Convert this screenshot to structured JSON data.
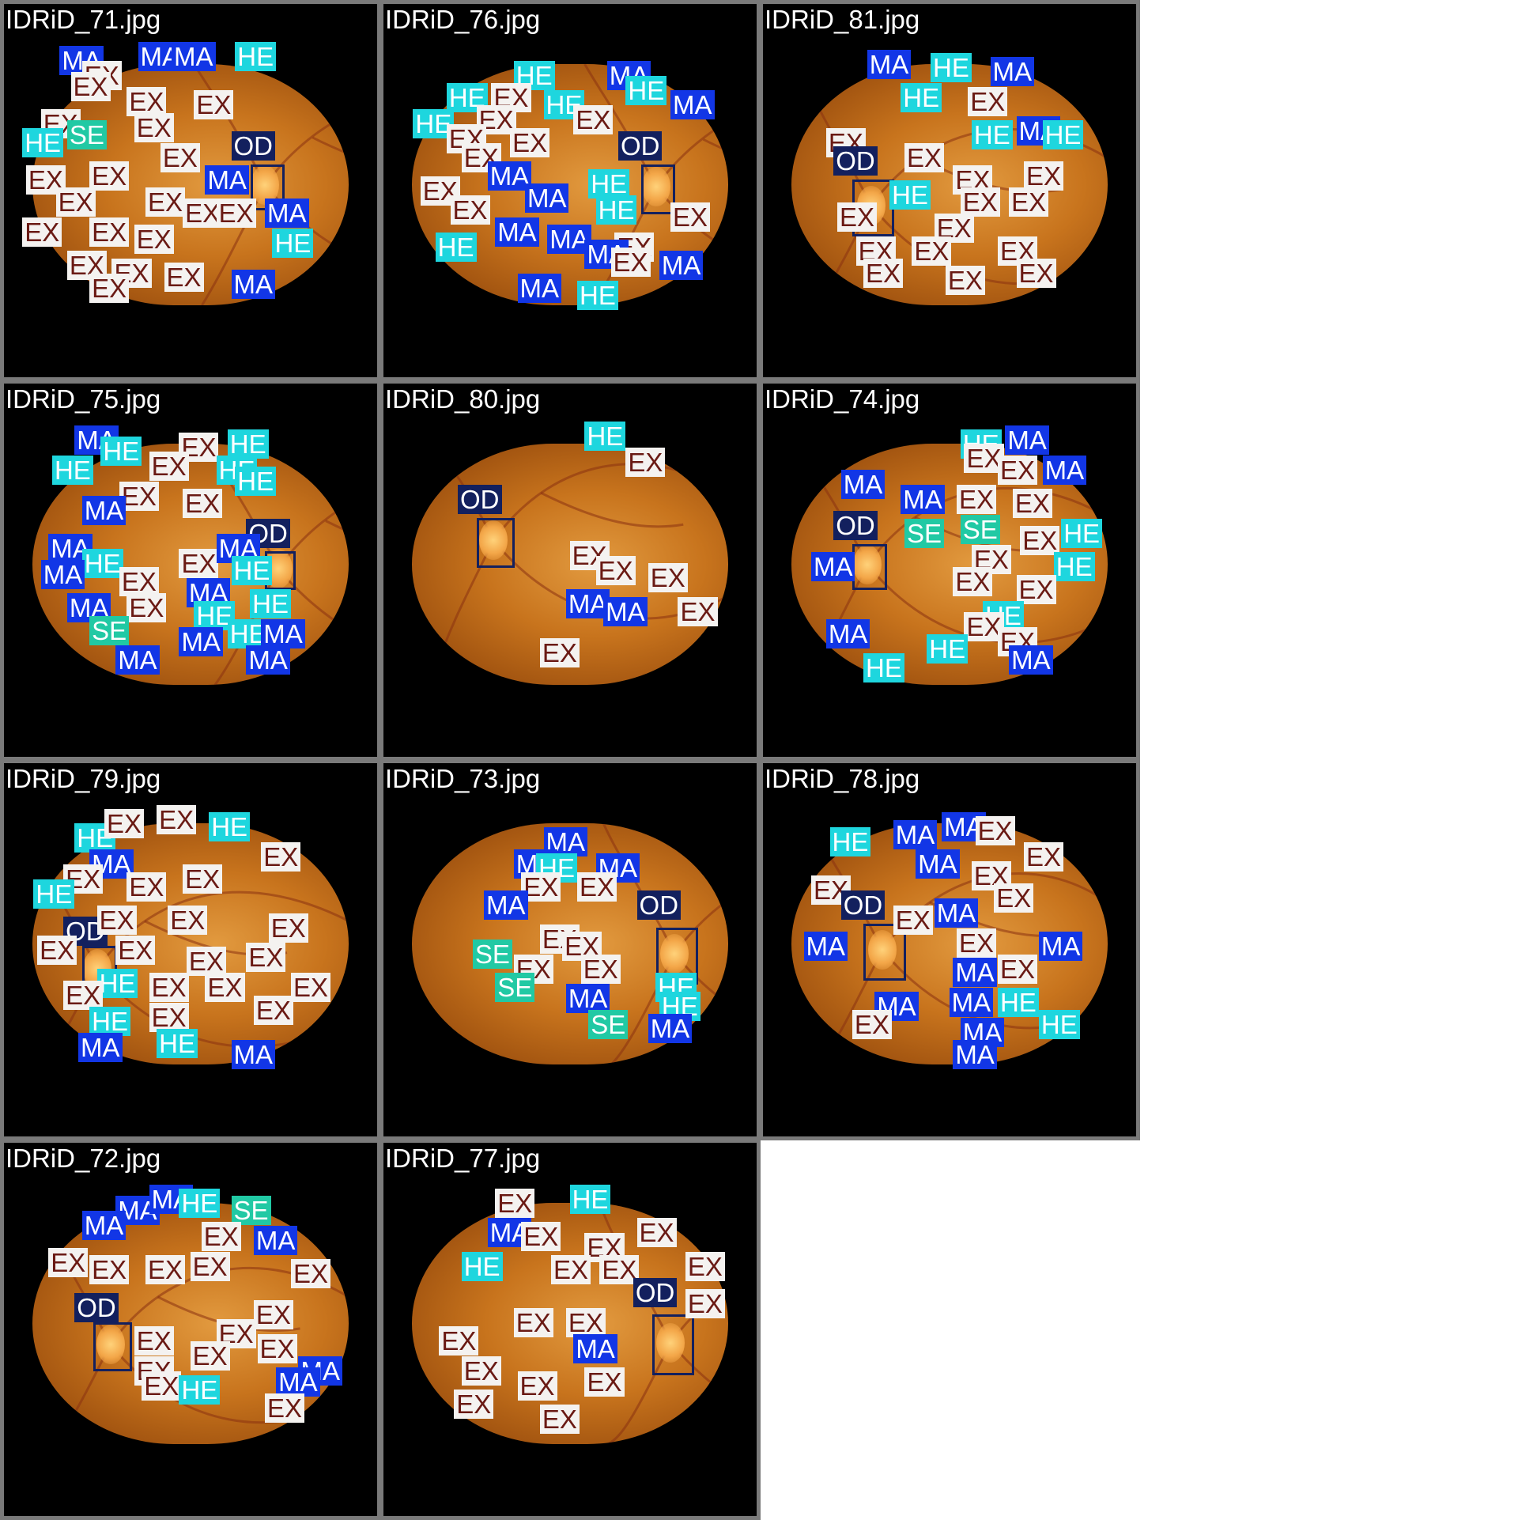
{
  "tiles": [
    {
      "name": "IDRiD_71.jpg",
      "labels": [
        [
          "MA",
          0.2,
          0.15
        ],
        [
          "MA",
          0.41,
          0.14
        ],
        [
          "MA",
          0.5,
          0.14
        ],
        [
          "HE",
          0.67,
          0.14
        ],
        [
          "EX",
          0.26,
          0.19
        ],
        [
          "EX",
          0.23,
          0.22
        ],
        [
          "EX",
          0.38,
          0.26
        ],
        [
          "EX",
          0.56,
          0.27
        ],
        [
          "EX",
          0.15,
          0.32
        ],
        [
          "SE",
          0.22,
          0.35
        ],
        [
          "HE",
          0.1,
          0.37
        ],
        [
          "OD",
          0.66,
          0.38
        ],
        [
          "EX",
          0.4,
          0.33
        ],
        [
          "EX",
          0.47,
          0.41
        ],
        [
          "EX",
          0.11,
          0.47
        ],
        [
          "EX",
          0.28,
          0.46
        ],
        [
          "MA",
          0.59,
          0.47
        ],
        [
          "EX",
          0.19,
          0.53
        ],
        [
          "EX",
          0.43,
          0.53
        ],
        [
          "EX",
          0.53,
          0.56
        ],
        [
          "EX",
          0.62,
          0.56
        ],
        [
          "MA",
          0.75,
          0.56
        ],
        [
          "EX",
          0.1,
          0.61
        ],
        [
          "EX",
          0.28,
          0.61
        ],
        [
          "EX",
          0.4,
          0.63
        ],
        [
          "HE",
          0.77,
          0.64
        ],
        [
          "EX",
          0.22,
          0.7
        ],
        [
          "EX",
          0.34,
          0.72
        ],
        [
          "EX",
          0.48,
          0.73
        ],
        [
          "EX",
          0.28,
          0.76
        ],
        [
          "MA",
          0.66,
          0.75
        ]
      ],
      "od": [
        0.66,
        0.43,
        0.08,
        0.11
      ]
    },
    {
      "name": "IDRiD_75.jpg",
      "labels": [
        [
          "MA",
          0.24,
          0.15
        ],
        [
          "HE",
          0.31,
          0.18
        ],
        [
          "EX",
          0.52,
          0.17
        ],
        [
          "HE",
          0.65,
          0.16
        ],
        [
          "HE",
          0.18,
          0.23
        ],
        [
          "EX",
          0.44,
          0.22
        ],
        [
          "HE",
          0.62,
          0.23
        ],
        [
          "EX",
          0.36,
          0.3
        ],
        [
          "EX",
          0.53,
          0.32
        ],
        [
          "HE",
          0.67,
          0.26
        ],
        [
          "MA",
          0.26,
          0.34
        ],
        [
          "OD",
          0.7,
          0.4
        ],
        [
          "MA",
          0.17,
          0.44
        ],
        [
          "HE",
          0.26,
          0.48
        ],
        [
          "EX",
          0.52,
          0.48
        ],
        [
          "MA",
          0.62,
          0.44
        ],
        [
          "HE",
          0.66,
          0.5
        ],
        [
          "MA",
          0.15,
          0.51
        ],
        [
          "EX",
          0.36,
          0.53
        ],
        [
          "MA",
          0.54,
          0.56
        ],
        [
          "HE",
          0.71,
          0.59
        ],
        [
          "MA",
          0.22,
          0.6
        ],
        [
          "EX",
          0.38,
          0.6
        ],
        [
          "HE",
          0.56,
          0.62
        ],
        [
          "SE",
          0.28,
          0.66
        ],
        [
          "MA",
          0.52,
          0.69
        ],
        [
          "HE",
          0.65,
          0.67
        ],
        [
          "MA",
          0.74,
          0.67
        ],
        [
          "MA",
          0.35,
          0.74
        ],
        [
          "MA",
          0.7,
          0.74
        ]
      ],
      "od": [
        0.7,
        0.45,
        0.07,
        0.09
      ]
    },
    {
      "name": "IDRiD_79.jpg",
      "labels": [
        [
          "HE",
          0.24,
          0.2
        ],
        [
          "EX",
          0.32,
          0.16
        ],
        [
          "EX",
          0.46,
          0.15
        ],
        [
          "HE",
          0.6,
          0.17
        ],
        [
          "MA",
          0.28,
          0.27
        ],
        [
          "EX",
          0.74,
          0.25
        ],
        [
          "EX",
          0.21,
          0.31
        ],
        [
          "EX",
          0.38,
          0.33
        ],
        [
          "EX",
          0.53,
          0.31
        ],
        [
          "HE",
          0.13,
          0.35
        ],
        [
          "OD",
          0.21,
          0.45
        ],
        [
          "EX",
          0.3,
          0.42
        ],
        [
          "EX",
          0.49,
          0.42
        ],
        [
          "EX",
          0.76,
          0.44
        ],
        [
          "EX",
          0.14,
          0.5
        ],
        [
          "EX",
          0.35,
          0.5
        ],
        [
          "EX",
          0.54,
          0.53
        ],
        [
          "EX",
          0.7,
          0.52
        ],
        [
          "HE",
          0.3,
          0.59
        ],
        [
          "EX",
          0.44,
          0.6
        ],
        [
          "EX",
          0.59,
          0.6
        ],
        [
          "EX",
          0.82,
          0.6
        ],
        [
          "EX",
          0.21,
          0.62
        ],
        [
          "EX",
          0.44,
          0.68
        ],
        [
          "EX",
          0.72,
          0.66
        ],
        [
          "HE",
          0.28,
          0.69
        ],
        [
          "MA",
          0.25,
          0.76
        ],
        [
          "HE",
          0.46,
          0.75
        ],
        [
          "MA",
          0.66,
          0.78
        ]
      ],
      "od": [
        0.21,
        0.49,
        0.08,
        0.12
      ]
    },
    {
      "name": "IDRiD_72.jpg",
      "labels": [
        [
          "MA",
          0.35,
          0.18
        ],
        [
          "MA",
          0.44,
          0.15
        ],
        [
          "HE",
          0.52,
          0.16
        ],
        [
          "SE",
          0.66,
          0.18
        ],
        [
          "MA",
          0.26,
          0.22
        ],
        [
          "EX",
          0.58,
          0.25
        ],
        [
          "MA",
          0.72,
          0.26
        ],
        [
          "EX",
          0.17,
          0.32
        ],
        [
          "EX",
          0.28,
          0.34
        ],
        [
          "EX",
          0.43,
          0.34
        ],
        [
          "EX",
          0.55,
          0.33
        ],
        [
          "EX",
          0.82,
          0.35
        ],
        [
          "OD",
          0.24,
          0.44
        ],
        [
          "EX",
          0.4,
          0.53
        ],
        [
          "EX",
          0.62,
          0.51
        ],
        [
          "EX",
          0.72,
          0.46
        ],
        [
          "EX",
          0.55,
          0.57
        ],
        [
          "EX",
          0.73,
          0.55
        ],
        [
          "MA",
          0.84,
          0.61
        ],
        [
          "EX",
          0.4,
          0.61
        ],
        [
          "MA",
          0.78,
          0.64
        ],
        [
          "EX",
          0.42,
          0.65
        ],
        [
          "HE",
          0.52,
          0.66
        ],
        [
          "EX",
          0.75,
          0.71
        ]
      ],
      "od": [
        0.24,
        0.48,
        0.09,
        0.12
      ]
    },
    {
      "name": "IDRiD_76.jpg",
      "labels": [
        [
          "HE",
          0.4,
          0.19
        ],
        [
          "MA",
          0.65,
          0.19
        ],
        [
          "HE",
          0.22,
          0.25
        ],
        [
          "EX",
          0.34,
          0.25
        ],
        [
          "HE",
          0.48,
          0.27
        ],
        [
          "HE",
          0.7,
          0.23
        ],
        [
          "MA",
          0.82,
          0.27
        ],
        [
          "EX",
          0.3,
          0.31
        ],
        [
          "EX",
          0.56,
          0.31
        ],
        [
          "HE",
          0.13,
          0.32
        ],
        [
          "EX",
          0.22,
          0.36
        ],
        [
          "EX",
          0.39,
          0.37
        ],
        [
          "OD",
          0.68,
          0.38
        ],
        [
          "EX",
          0.26,
          0.41
        ],
        [
          "MA",
          0.33,
          0.46
        ],
        [
          "EX",
          0.15,
          0.5
        ],
        [
          "HE",
          0.6,
          0.48
        ],
        [
          "MA",
          0.43,
          0.52
        ],
        [
          "EX",
          0.23,
          0.55
        ],
        [
          "HE",
          0.62,
          0.55
        ],
        [
          "EX",
          0.82,
          0.57
        ],
        [
          "MA",
          0.35,
          0.61
        ],
        [
          "MA",
          0.49,
          0.63
        ],
        [
          "HE",
          0.19,
          0.65
        ],
        [
          "EX",
          0.67,
          0.65
        ],
        [
          "MA",
          0.59,
          0.67
        ],
        [
          "EX",
          0.66,
          0.69
        ],
        [
          "MA",
          0.79,
          0.7
        ],
        [
          "MA",
          0.41,
          0.76
        ],
        [
          "HE",
          0.57,
          0.78
        ]
      ],
      "od": [
        0.69,
        0.43,
        0.08,
        0.12
      ]
    },
    {
      "name": "IDRiD_80.jpg",
      "labels": [
        [
          "HE",
          0.59,
          0.14
        ],
        [
          "EX",
          0.7,
          0.21
        ],
        [
          "OD",
          0.25,
          0.31
        ],
        [
          "EX",
          0.55,
          0.46
        ],
        [
          "EX",
          0.62,
          0.5
        ],
        [
          "EX",
          0.76,
          0.52
        ],
        [
          "MA",
          0.54,
          0.59
        ],
        [
          "MA",
          0.64,
          0.61
        ],
        [
          "EX",
          0.84,
          0.61
        ],
        [
          "EX",
          0.47,
          0.72
        ]
      ],
      "od": [
        0.25,
        0.36,
        0.09,
        0.12
      ]
    },
    {
      "name": "IDRiD_73.jpg",
      "labels": [
        [
          "MA",
          0.48,
          0.21
        ],
        [
          "MA",
          0.4,
          0.27
        ],
        [
          "HE",
          0.46,
          0.28
        ],
        [
          "MA",
          0.62,
          0.28
        ],
        [
          "EX",
          0.42,
          0.33
        ],
        [
          "EX",
          0.57,
          0.33
        ],
        [
          "OD",
          0.73,
          0.38
        ],
        [
          "MA",
          0.32,
          0.38
        ],
        [
          "EX",
          0.47,
          0.47
        ],
        [
          "EX",
          0.53,
          0.49
        ],
        [
          "SE",
          0.29,
          0.51
        ],
        [
          "EX",
          0.4,
          0.55
        ],
        [
          "EX",
          0.58,
          0.55
        ],
        [
          "SE",
          0.35,
          0.6
        ],
        [
          "HE",
          0.78,
          0.6
        ],
        [
          "MA",
          0.54,
          0.63
        ],
        [
          "HE",
          0.79,
          0.65
        ],
        [
          "SE",
          0.6,
          0.7
        ],
        [
          "MA",
          0.76,
          0.71
        ]
      ],
      "od": [
        0.73,
        0.44,
        0.1,
        0.14
      ]
    },
    {
      "name": "IDRiD_77.jpg",
      "labels": [
        [
          "EX",
          0.35,
          0.16
        ],
        [
          "HE",
          0.55,
          0.15
        ],
        [
          "MA",
          0.33,
          0.24
        ],
        [
          "EX",
          0.42,
          0.25
        ],
        [
          "EX",
          0.59,
          0.28
        ],
        [
          "EX",
          0.73,
          0.24
        ],
        [
          "HE",
          0.26,
          0.33
        ],
        [
          "EX",
          0.5,
          0.34
        ],
        [
          "EX",
          0.63,
          0.34
        ],
        [
          "EX",
          0.86,
          0.33
        ],
        [
          "OD",
          0.72,
          0.4
        ],
        [
          "EX",
          0.86,
          0.43
        ],
        [
          "EX",
          0.4,
          0.48
        ],
        [
          "EX",
          0.54,
          0.48
        ],
        [
          "EX",
          0.2,
          0.53
        ],
        [
          "MA",
          0.56,
          0.55
        ],
        [
          "EX",
          0.26,
          0.61
        ],
        [
          "EX",
          0.41,
          0.65
        ],
        [
          "EX",
          0.59,
          0.64
        ],
        [
          "EX",
          0.24,
          0.7
        ],
        [
          "EX",
          0.47,
          0.74
        ]
      ],
      "od": [
        0.72,
        0.46,
        0.1,
        0.15
      ]
    },
    {
      "name": "IDRiD_81.jpg",
      "labels": [
        [
          "MA",
          0.33,
          0.16
        ],
        [
          "HE",
          0.5,
          0.17
        ],
        [
          "MA",
          0.66,
          0.18
        ],
        [
          "HE",
          0.42,
          0.25
        ],
        [
          "EX",
          0.6,
          0.26
        ],
        [
          "HE",
          0.61,
          0.35
        ],
        [
          "MA",
          0.73,
          0.34
        ],
        [
          "HE",
          0.8,
          0.35
        ],
        [
          "EX",
          0.22,
          0.37
        ],
        [
          "OD",
          0.24,
          0.42
        ],
        [
          "EX",
          0.43,
          0.41
        ],
        [
          "EX",
          0.56,
          0.47
        ],
        [
          "EX",
          0.75,
          0.46
        ],
        [
          "HE",
          0.39,
          0.51
        ],
        [
          "EX",
          0.58,
          0.53
        ],
        [
          "EX",
          0.71,
          0.53
        ],
        [
          "EX",
          0.25,
          0.57
        ],
        [
          "EX",
          0.51,
          0.6
        ],
        [
          "EX",
          0.3,
          0.66
        ],
        [
          "EX",
          0.45,
          0.66
        ],
        [
          "EX",
          0.68,
          0.66
        ],
        [
          "EX",
          0.32,
          0.72
        ],
        [
          "EX",
          0.54,
          0.74
        ],
        [
          "EX",
          0.73,
          0.72
        ]
      ],
      "od": [
        0.24,
        0.47,
        0.1,
        0.14
      ]
    },
    {
      "name": "IDRiD_74.jpg",
      "labels": [
        [
          "HE",
          0.58,
          0.16
        ],
        [
          "MA",
          0.7,
          0.15
        ],
        [
          "EX",
          0.59,
          0.2
        ],
        [
          "EX",
          0.68,
          0.23
        ],
        [
          "MA",
          0.8,
          0.23
        ],
        [
          "MA",
          0.26,
          0.27
        ],
        [
          "MA",
          0.42,
          0.31
        ],
        [
          "EX",
          0.57,
          0.31
        ],
        [
          "EX",
          0.72,
          0.32
        ],
        [
          "OD",
          0.24,
          0.38
        ],
        [
          "SE",
          0.43,
          0.4
        ],
        [
          "SE",
          0.58,
          0.39
        ],
        [
          "HE",
          0.85,
          0.4
        ],
        [
          "EX",
          0.74,
          0.42
        ],
        [
          "MA",
          0.18,
          0.49
        ],
        [
          "EX",
          0.61,
          0.47
        ],
        [
          "HE",
          0.83,
          0.49
        ],
        [
          "EX",
          0.56,
          0.53
        ],
        [
          "EX",
          0.73,
          0.55
        ],
        [
          "MA",
          0.22,
          0.67
        ],
        [
          "HE",
          0.64,
          0.62
        ],
        [
          "EX",
          0.59,
          0.65
        ],
        [
          "EX",
          0.68,
          0.69
        ],
        [
          "HE",
          0.49,
          0.71
        ],
        [
          "MA",
          0.71,
          0.74
        ],
        [
          "HE",
          0.32,
          0.76
        ]
      ],
      "od": [
        0.24,
        0.43,
        0.08,
        0.11
      ]
    },
    {
      "name": "IDRiD_78.jpg",
      "labels": [
        [
          "HE",
          0.23,
          0.21
        ],
        [
          "MA",
          0.4,
          0.19
        ],
        [
          "MA",
          0.53,
          0.17
        ],
        [
          "EX",
          0.62,
          0.18
        ],
        [
          "MA",
          0.46,
          0.27
        ],
        [
          "EX",
          0.75,
          0.25
        ],
        [
          "EX",
          0.61,
          0.3
        ],
        [
          "EX",
          0.18,
          0.34
        ],
        [
          "OD",
          0.26,
          0.38
        ],
        [
          "EX",
          0.4,
          0.42
        ],
        [
          "MA",
          0.51,
          0.4
        ],
        [
          "EX",
          0.67,
          0.36
        ],
        [
          "MA",
          0.16,
          0.49
        ],
        [
          "EX",
          0.57,
          0.48
        ],
        [
          "MA",
          0.79,
          0.49
        ],
        [
          "MA",
          0.56,
          0.56
        ],
        [
          "EX",
          0.68,
          0.55
        ],
        [
          "MA",
          0.35,
          0.65
        ],
        [
          "MA",
          0.55,
          0.64
        ],
        [
          "HE",
          0.68,
          0.64
        ],
        [
          "EX",
          0.29,
          0.7
        ],
        [
          "MA",
          0.58,
          0.72
        ],
        [
          "MA",
          0.56,
          0.78
        ],
        [
          "HE",
          0.79,
          0.7
        ]
      ],
      "od": [
        0.27,
        0.43,
        0.1,
        0.14
      ]
    }
  ]
}
